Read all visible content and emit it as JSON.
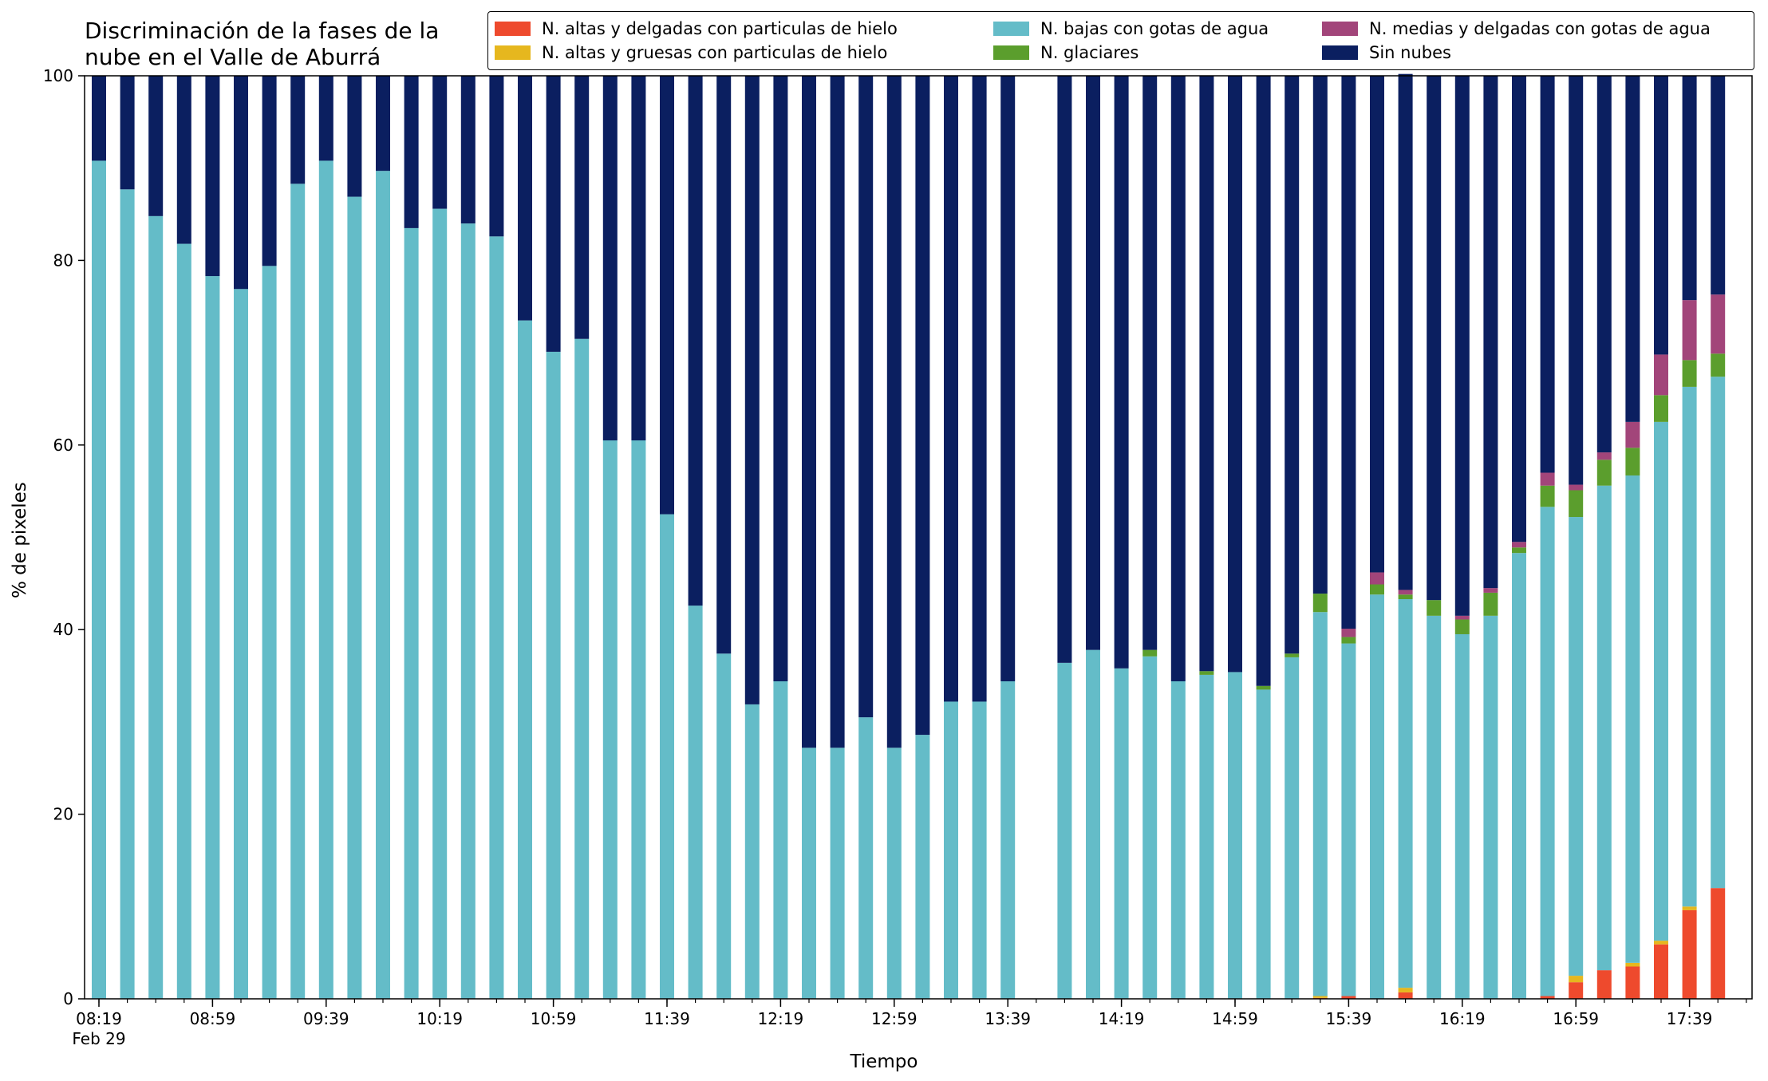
{
  "chart_data": {
    "type": "bar",
    "stacked": true,
    "title": "Discriminación de la fases de la\nnube en el Valle de Aburrá",
    "xlabel": "Tiempo",
    "ylabel": "% de pixeles",
    "ylim": [
      0,
      100
    ],
    "yticks": [
      0,
      20,
      40,
      60,
      80,
      100
    ],
    "x_start_date": "Feb 29",
    "x_tick_labels": [
      "08:19",
      "08:59",
      "09:39",
      "10:19",
      "10:59",
      "11:39",
      "12:19",
      "12:59",
      "13:39",
      "14:19",
      "14:59",
      "15:39",
      "16:19",
      "16:59",
      "17:39"
    ],
    "x_first_label_sub": "Feb 29",
    "categories": [
      "08:19",
      "08:29",
      "08:39",
      "08:49",
      "08:59",
      "09:09",
      "09:19",
      "09:29",
      "09:39",
      "09:49",
      "09:59",
      "10:09",
      "10:19",
      "10:29",
      "10:39",
      "10:49",
      "10:59",
      "11:09",
      "11:19",
      "11:29",
      "11:39",
      "11:49",
      "11:59",
      "12:09",
      "12:19",
      "12:29",
      "12:39",
      "12:49",
      "12:59",
      "13:09",
      "13:19",
      "13:29",
      "13:39",
      "13:49",
      "13:59",
      "14:09",
      "14:19",
      "14:29",
      "14:39",
      "14:49",
      "14:59",
      "15:09",
      "15:19",
      "15:29",
      "15:39",
      "15:49",
      "15:59",
      "16:09",
      "16:19",
      "16:29",
      "16:39",
      "16:49",
      "16:59",
      "17:09",
      "17:19",
      "17:29",
      "17:39",
      "17:49"
    ],
    "series": [
      {
        "name": "N. altas y delgadas con particulas de hielo",
        "color": "#ee4a2d",
        "values": [
          0,
          0,
          0,
          0,
          0,
          0,
          0,
          0,
          0,
          0,
          0,
          0,
          0,
          0,
          0,
          0,
          0,
          0,
          0,
          0,
          0,
          0,
          0,
          0,
          0,
          0,
          0,
          0,
          0,
          0,
          0,
          0,
          0,
          0,
          0,
          0,
          0,
          0,
          0,
          0,
          0,
          0,
          0,
          0.1,
          0.3,
          0,
          0.7,
          0,
          0,
          0,
          0,
          0.3,
          1.8,
          3.1,
          3.5,
          5.9,
          9.6,
          12.0
        ]
      },
      {
        "name": "N. altas y gruesas con particulas de hielo",
        "color": "#e6b71e",
        "values": [
          0,
          0,
          0,
          0,
          0,
          0,
          0,
          0,
          0,
          0,
          0,
          0,
          0,
          0,
          0,
          0,
          0,
          0,
          0,
          0,
          0,
          0,
          0,
          0,
          0,
          0,
          0,
          0,
          0,
          0,
          0,
          0,
          0,
          0,
          0,
          0,
          0,
          0,
          0,
          0,
          0,
          0,
          0,
          0.2,
          0,
          0,
          0.5,
          0,
          0,
          0,
          0,
          0,
          0.7,
          0,
          0.4,
          0.4,
          0.4,
          0
        ]
      },
      {
        "name": "N. bajas con gotas de agua",
        "color": "#64bcc8",
        "values": [
          90.8,
          87.7,
          84.8,
          81.8,
          78.3,
          76.9,
          79.4,
          88.3,
          90.8,
          86.9,
          89.7,
          83.5,
          85.6,
          84.0,
          82.6,
          73.5,
          70.1,
          71.5,
          60.5,
          60.5,
          52.5,
          42.6,
          37.4,
          31.9,
          34.4,
          27.2,
          27.2,
          30.5,
          27.2,
          28.6,
          32.2,
          32.2,
          34.4,
          0,
          36.4,
          37.8,
          35.8,
          37.1,
          34.4,
          35.1,
          35.4,
          33.5,
          37.0,
          41.6,
          38.2,
          43.8,
          42.1,
          41.5,
          39.5,
          41.5,
          48.3,
          53.0,
          49.7,
          52.5,
          52.8,
          56.2,
          56.3,
          55.4
        ]
      },
      {
        "name": "N. glaciares",
        "color": "#5b9e2d",
        "values": [
          0,
          0,
          0,
          0,
          0,
          0,
          0,
          0,
          0,
          0,
          0,
          0,
          0,
          0,
          0,
          0,
          0,
          0,
          0,
          0,
          0,
          0,
          0,
          0,
          0,
          0,
          0,
          0,
          0,
          0,
          0,
          0,
          0,
          0,
          0,
          0,
          0,
          0.7,
          0,
          0.4,
          0,
          0.4,
          0.4,
          2.0,
          0.7,
          1.1,
          0.5,
          1.7,
          1.6,
          2.5,
          0.6,
          2.3,
          2.9,
          2.8,
          3.0,
          2.9,
          2.9,
          2.5
        ]
      },
      {
        "name": "N. medias y delgadas con gotas de agua",
        "color": "#a2457a",
        "values": [
          0,
          0,
          0,
          0,
          0,
          0,
          0,
          0,
          0,
          0,
          0,
          0,
          0,
          0,
          0,
          0,
          0,
          0,
          0,
          0,
          0,
          0,
          0,
          0,
          0,
          0,
          0,
          0,
          0,
          0,
          0,
          0,
          0,
          0,
          0,
          0,
          0,
          0,
          0,
          0,
          0,
          0,
          0,
          0,
          0.9,
          1.3,
          0.5,
          0,
          0.4,
          0.5,
          0.6,
          1.4,
          0.6,
          0.8,
          2.8,
          4.4,
          6.5,
          6.4
        ]
      },
      {
        "name": "Sin nubes",
        "color": "#0b1f60",
        "values": [
          9.2,
          12.3,
          15.2,
          18.2,
          21.7,
          23.1,
          20.6,
          11.7,
          9.2,
          13.1,
          10.3,
          16.5,
          14.4,
          16.0,
          17.4,
          26.5,
          29.9,
          28.5,
          39.5,
          39.5,
          47.5,
          57.4,
          62.6,
          68.1,
          65.6,
          72.8,
          72.8,
          69.5,
          72.8,
          71.4,
          67.8,
          67.8,
          65.6,
          0,
          63.6,
          62.2,
          64.2,
          62.2,
          65.6,
          64.5,
          64.6,
          66.1,
          62.6,
          56.1,
          59.9,
          53.8,
          55.9,
          56.8,
          58.5,
          55.5,
          50.5,
          43.0,
          44.3,
          40.8,
          37.5,
          30.2,
          24.3,
          23.7
        ]
      }
    ],
    "legend_position": "top-right",
    "grid": false
  }
}
